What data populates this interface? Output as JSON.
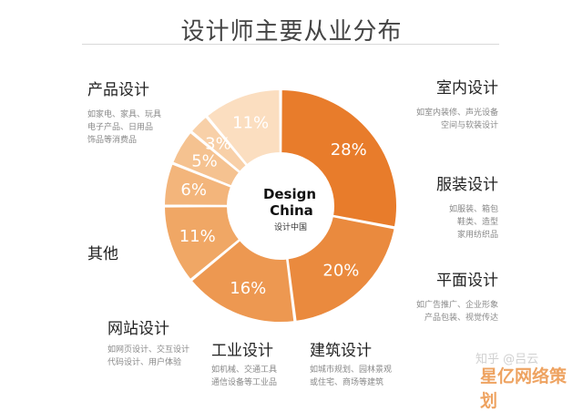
{
  "title": "设计师主要从业分布",
  "center_logo": {
    "line1": "Design",
    "line2": "China",
    "line3": "设计中国"
  },
  "categories": {
    "product": {
      "name": "产品设计",
      "desc": [
        "如家电、家具、玩具",
        "电子产品、日用品",
        "饰品等消费品"
      ]
    },
    "interior": {
      "name": "室内设计",
      "desc": [
        "如室内装修、声光设备",
        "空间与软装设计"
      ]
    },
    "fashion": {
      "name": "服装设计",
      "desc": [
        "如服装、箱包",
        "鞋类、造型",
        "家用纺织品"
      ]
    },
    "graphic": {
      "name": "平面设计",
      "desc": [
        "如广告推广、企业形象",
        "产品包装、视觉传达"
      ]
    },
    "arch": {
      "name": "建筑设计",
      "desc": [
        "如城市规划、园林景观",
        "或住宅、商场等建筑"
      ]
    },
    "industrial": {
      "name": "工业设计",
      "desc": [
        "如机械、交通工具",
        "通信设备等工业品"
      ]
    },
    "web": {
      "name": "网站设计",
      "desc": [
        "如网页设计、交互设计",
        "代码设计、用户体验"
      ]
    },
    "other": {
      "name": "其他",
      "desc": []
    }
  },
  "watermark": {
    "text1": "知乎 @吕云",
    "text2": "星亿网络策划"
  },
  "chart_data": {
    "type": "pie",
    "donut": true,
    "categories": [
      "产品设计",
      "室内设计",
      "服装设计",
      "平面设计",
      "建筑设计",
      "工业设计",
      "网站设计",
      "其他"
    ],
    "values": [
      28,
      20,
      16,
      11,
      6,
      5,
      3,
      11
    ],
    "labels": [
      "28%",
      "20%",
      "16%",
      "11%",
      "6%",
      "5%",
      "3%",
      "11%"
    ],
    "colors": [
      "#E87C2B",
      "#EA8A3E",
      "#ED9851",
      "#F0A765",
      "#F3B57B",
      "#F5C290",
      "#F8D0A8",
      "#FBDEC0"
    ],
    "title": "设计师主要从业分布"
  }
}
